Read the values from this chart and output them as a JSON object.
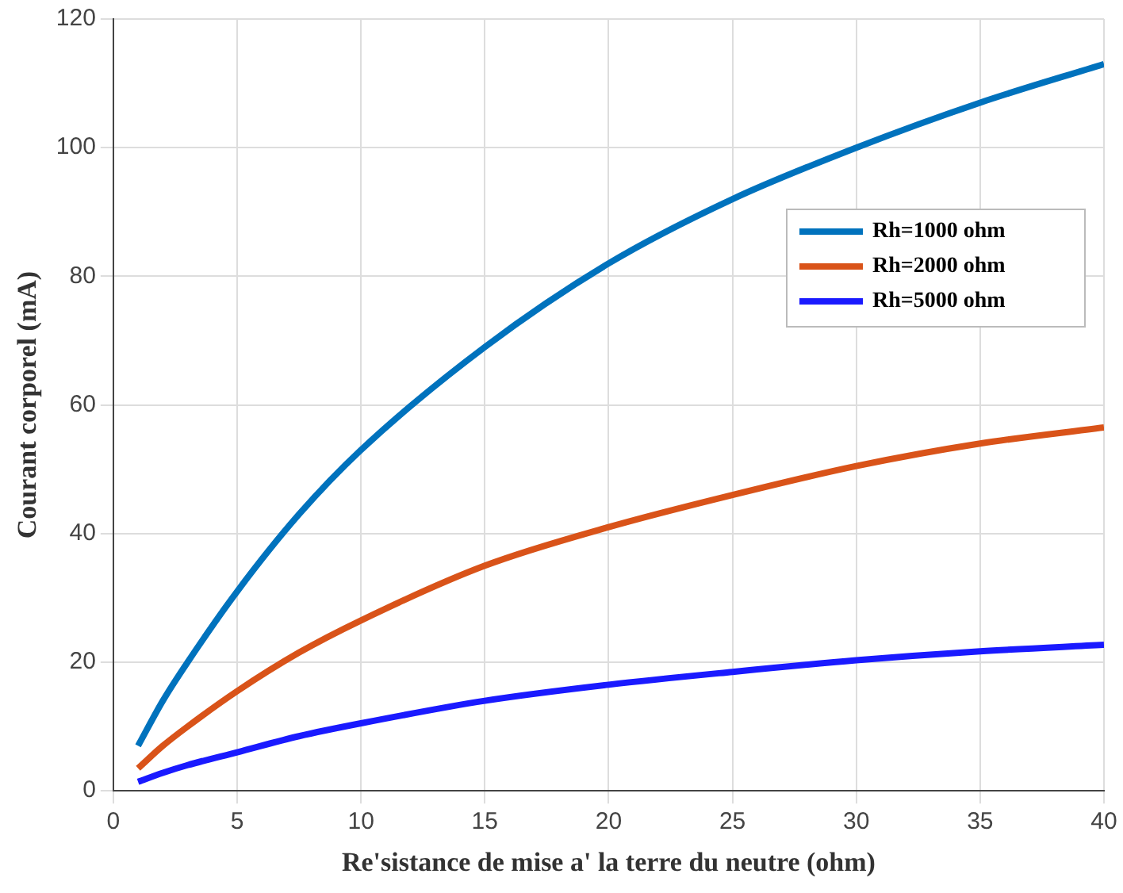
{
  "chart_data": {
    "type": "line",
    "xlabel": "Re'sistance de mise a' la terre du neutre (ohm)",
    "ylabel": "Courant corporel (mA)",
    "x": [
      1,
      2,
      3,
      5,
      7.5,
      10,
      15,
      20,
      25,
      30,
      35,
      40
    ],
    "series": [
      {
        "name": "Rh=1000 ohm",
        "color": "#0072bd",
        "values": [
          7,
          14,
          20,
          31,
          43,
          53,
          69,
          82,
          92,
          100,
          107,
          113
        ]
      },
      {
        "name": "Rh=2000 ohm",
        "color": "#d95319",
        "values": [
          3.5,
          7,
          10,
          15.5,
          21.5,
          26.5,
          35,
          41,
          46,
          50.5,
          54,
          56.5
        ]
      },
      {
        "name": "Rh=5000 ohm",
        "color": "#1a1aff",
        "values": [
          1.4,
          2.8,
          4,
          6,
          8.5,
          10.5,
          14,
          16.5,
          18.5,
          20.3,
          21.7,
          22.7
        ]
      }
    ],
    "xlim": [
      0,
      40
    ],
    "xticks": [
      0,
      5,
      10,
      15,
      20,
      25,
      30,
      35,
      40
    ],
    "ylim": [
      0,
      120
    ],
    "yticks": [
      0,
      20,
      40,
      60,
      80,
      100,
      120
    ],
    "grid": true,
    "legend": "top right",
    "marker": "none",
    "line_style": "solid"
  }
}
